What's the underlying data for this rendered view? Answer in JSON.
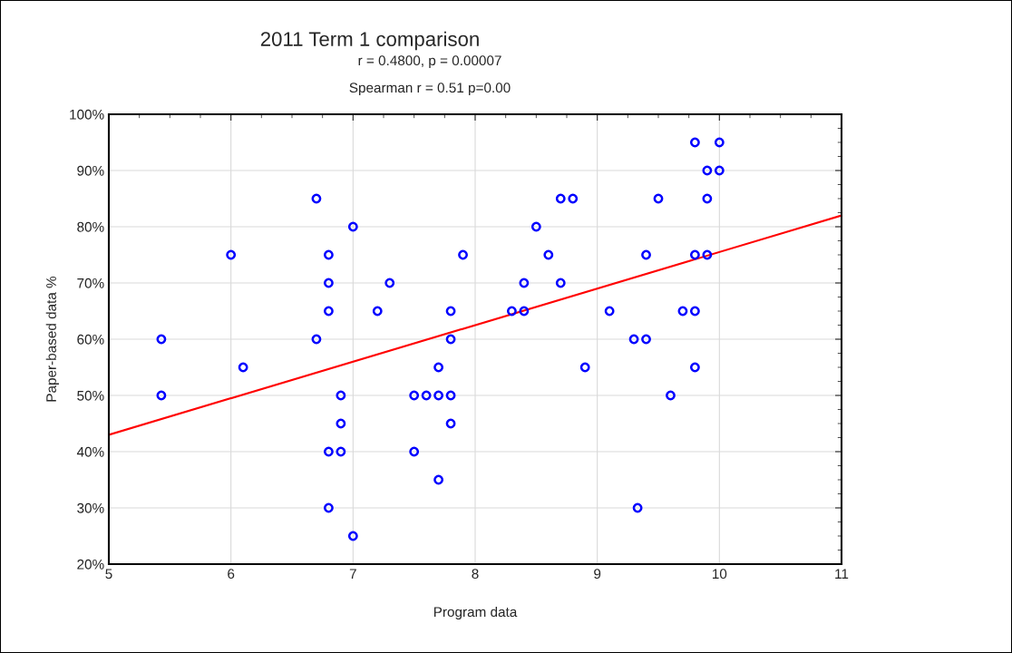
{
  "chart_data": {
    "type": "scatter",
    "title": "2011 Term 1 comparison",
    "subtitle": "r = 0.4800, p = 0.00007",
    "annotations": [
      "Spearman r = 0.51 p=0.00"
    ],
    "xlabel": "Program data",
    "ylabel": "Paper-based data %",
    "xlim": [
      5,
      11
    ],
    "xticks": [
      5,
      6,
      7,
      8,
      9,
      10,
      11
    ],
    "ylim": [
      20,
      100
    ],
    "yticks": [
      {
        "value": 20,
        "label": "20%"
      },
      {
        "value": 30,
        "label": "30%"
      },
      {
        "value": 40,
        "label": "40%"
      },
      {
        "value": 50,
        "label": "50%"
      },
      {
        "value": 60,
        "label": "60%"
      },
      {
        "value": 70,
        "label": "70%"
      },
      {
        "value": 80,
        "label": "80%"
      },
      {
        "value": 90,
        "label": "90%"
      },
      {
        "value": 100,
        "label": "100%"
      }
    ],
    "grid": true,
    "series": [
      {
        "marker": "circle",
        "color": "#0000ff",
        "x": [
          5.43,
          5.43,
          6.0,
          6.1,
          6.7,
          6.7,
          6.8,
          6.8,
          6.8,
          6.8,
          6.8,
          6.9,
          6.9,
          6.9,
          7.0,
          7.0,
          7.2,
          7.3,
          7.5,
          7.5,
          7.6,
          7.7,
          7.7,
          7.7,
          7.8,
          7.8,
          7.8,
          7.8,
          7.9,
          8.3,
          8.4,
          8.4,
          8.5,
          8.6,
          8.7,
          8.7,
          8.8,
          8.9,
          9.1,
          9.3,
          9.33,
          9.4,
          9.4,
          9.5,
          9.6,
          9.7,
          9.8,
          9.8,
          9.8,
          9.8,
          9.9,
          9.9,
          9.9,
          10.0,
          10.0
        ],
        "values": [
          60,
          50,
          75,
          55,
          85,
          60,
          75,
          70,
          65,
          40,
          30,
          50,
          45,
          40,
          80,
          25,
          65,
          70,
          50,
          40,
          50,
          50,
          55,
          35,
          65,
          60,
          50,
          45,
          75,
          65,
          70,
          65,
          80,
          75,
          85,
          70,
          85,
          55,
          65,
          60,
          30,
          75,
          60,
          85,
          50,
          65,
          95,
          75,
          65,
          55,
          90,
          85,
          75,
          95,
          90
        ]
      },
      {
        "type": "line",
        "color": "#ff0000",
        "x": [
          5,
          11
        ],
        "values": [
          43,
          82
        ]
      }
    ]
  }
}
